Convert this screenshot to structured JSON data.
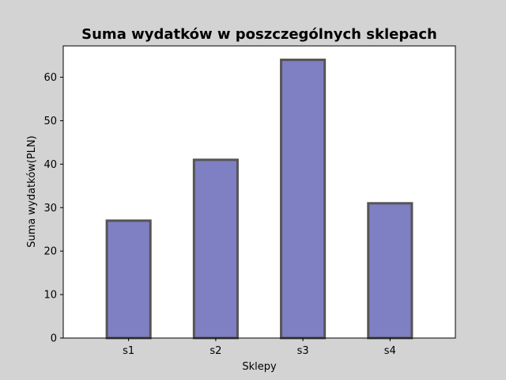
{
  "chart_data": {
    "type": "bar",
    "title": "Suma wydatków w poszczególnych sklepach",
    "xlabel": "Sklepy",
    "ylabel": "Suma wydatków(PLN)",
    "categories": [
      "s1",
      "s2",
      "s3",
      "s4"
    ],
    "values": [
      27,
      41,
      64,
      31
    ],
    "ylim": [
      0,
      67.2
    ],
    "yticks": [
      0,
      10,
      20,
      30,
      40,
      50,
      60
    ],
    "grid": false,
    "colors": {
      "figure_background": "#d3d3d3",
      "plot_background": "#ffffff",
      "bar_fill": "#7f7fc4",
      "bar_edge": "#555555"
    }
  }
}
